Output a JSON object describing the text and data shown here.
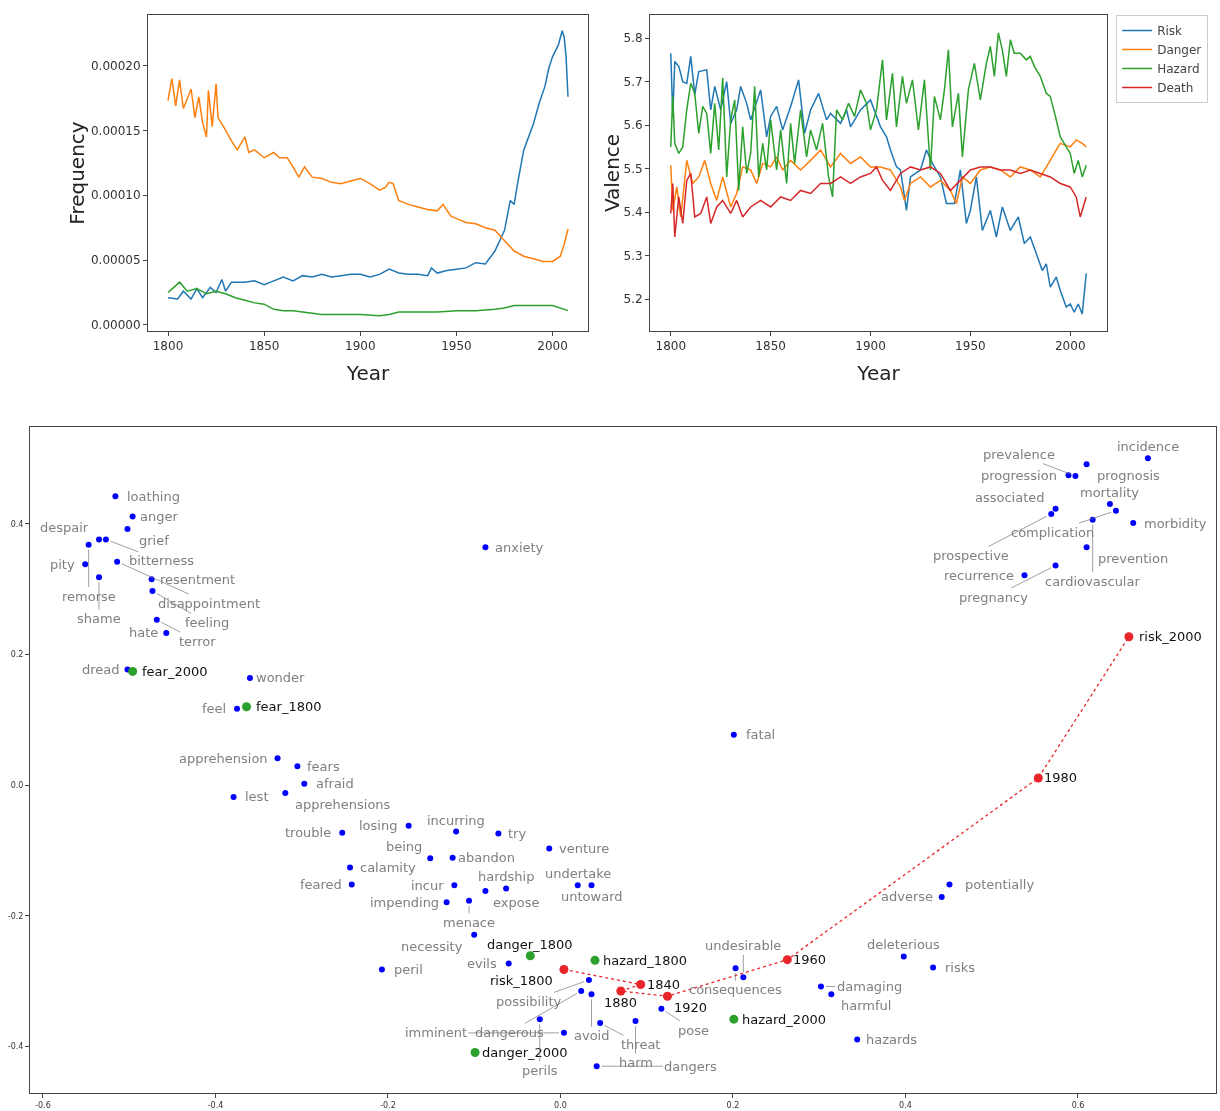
{
  "chart_data": [
    {
      "type": "line",
      "xlabel": "Year",
      "ylabel": "Frequency",
      "xlim": [
        1789.6,
        2018.4
      ],
      "ylim": [
        -4.7e-06,
        0.0002391
      ],
      "xticks": [
        1800,
        1850,
        1900,
        1950,
        2000
      ],
      "yticks": [
        {
          "value": 0,
          "label": "0.00000"
        },
        {
          "value": 5e-05,
          "label": "0.00005"
        },
        {
          "value": 0.0001,
          "label": "0.00010"
        },
        {
          "value": 0.00015,
          "label": "0.00015"
        },
        {
          "value": 0.0002,
          "label": "0.00020"
        }
      ],
      "series": [
        {
          "color": "#1f77b4",
          "x": [
            1800,
            1805,
            1808,
            1812,
            1815,
            1818,
            1822,
            1825,
            1828,
            1830,
            1833,
            1840,
            1845,
            1850,
            1855,
            1860,
            1865,
            1870,
            1875,
            1880,
            1885,
            1890,
            1895,
            1900,
            1905,
            1910,
            1915,
            1920,
            1925,
            1930,
            1935,
            1937,
            1940,
            1945,
            1950,
            1955,
            1960,
            1965,
            1970,
            1975,
            1978,
            1980,
            1982,
            1985,
            1988,
            1990,
            1993,
            1996,
            1998,
            2000,
            2003,
            2005,
            2006,
            2007,
            2008
          ],
          "values": [
            2.1e-05,
            2e-05,
            2.6e-05,
            2e-05,
            2.8e-05,
            2.1e-05,
            2.9e-05,
            2.5e-05,
            3.5e-05,
            2.6e-05,
            3.3e-05,
            3.3e-05,
            3.4e-05,
            3.1e-05,
            3.4e-05,
            3.7e-05,
            3.4e-05,
            3.8e-05,
            3.7e-05,
            3.9e-05,
            3.7e-05,
            3.8e-05,
            3.9e-05,
            3.9e-05,
            3.7e-05,
            3.9e-05,
            4.3e-05,
            4e-05,
            3.9e-05,
            3.9e-05,
            3.8e-05,
            4.4e-05,
            4e-05,
            4.2e-05,
            4.3e-05,
            4.4e-05,
            4.8e-05,
            4.7e-05,
            5.7e-05,
            7.3e-05,
            9.6e-05,
            9.3e-05,
            0.000111,
            0.000135,
            0.000147,
            0.000155,
            0.000171,
            0.000184,
            0.000198,
            0.000207,
            0.000216,
            0.000227,
            0.000222,
            0.000207,
            0.000176
          ]
        },
        {
          "color": "#ff7f0e",
          "x": [
            1800,
            1802,
            1804,
            1806,
            1808,
            1812,
            1814,
            1816,
            1818,
            1820,
            1821,
            1823,
            1825,
            1826,
            1830,
            1833,
            1836,
            1840,
            1842,
            1845,
            1850,
            1855,
            1858,
            1862,
            1865,
            1868,
            1871,
            1875,
            1880,
            1885,
            1890,
            1895,
            1900,
            1905,
            1910,
            1913,
            1915,
            1917,
            1920,
            1925,
            1930,
            1935,
            1940,
            1943,
            1947,
            1950,
            1955,
            1960,
            1965,
            1970,
            1975,
            1980,
            1985,
            1990,
            1995,
            2000,
            2004,
            2006,
            2008
          ],
          "values": [
            0.000173,
            0.00019,
            0.000169,
            0.000189,
            0.000167,
            0.000182,
            0.00016,
            0.000176,
            0.000156,
            0.000145,
            0.000181,
            0.000153,
            0.000186,
            0.00016,
            0.00015,
            0.000142,
            0.000135,
            0.000145,
            0.000133,
            0.000135,
            0.000129,
            0.000133,
            0.000129,
            0.000129,
            0.000122,
            0.000114,
            0.000122,
            0.000114,
            0.000113,
            0.00011,
            0.000109,
            0.000111,
            0.000113,
            0.000109,
            0.000104,
            0.000106,
            0.00011,
            0.000109,
            9.6e-05,
            9.3e-05,
            9.1e-05,
            8.9e-05,
            8.8e-05,
            9.3e-05,
            8.4e-05,
            8.2e-05,
            7.9e-05,
            7.8e-05,
            7.5e-05,
            7.3e-05,
            6.5e-05,
            5.7e-05,
            5.3e-05,
            5.1e-05,
            4.9e-05,
            4.9e-05,
            5.3e-05,
            6.2e-05,
            7.4e-05
          ]
        },
        {
          "color": "#2ca02c",
          "x": [
            1800,
            1803,
            1806,
            1810,
            1815,
            1820,
            1825,
            1830,
            1835,
            1840,
            1845,
            1850,
            1855,
            1860,
            1865,
            1870,
            1875,
            1880,
            1890,
            1900,
            1910,
            1915,
            1920,
            1930,
            1940,
            1950,
            1960,
            1970,
            1975,
            1980,
            1990,
            2000,
            2008
          ],
          "values": [
            2.5e-05,
            2.9e-05,
            3.3e-05,
            2.6e-05,
            2.8e-05,
            2.4e-05,
            2.6e-05,
            2.4e-05,
            2.1e-05,
            1.9e-05,
            1.7e-05,
            1.6e-05,
            1.2e-05,
            1.1e-05,
            1.1e-05,
            1e-05,
            9e-06,
            8e-06,
            8e-06,
            8e-06,
            7e-06,
            8e-06,
            1e-05,
            1e-05,
            1e-05,
            1.1e-05,
            1.1e-05,
            1.2e-05,
            1.3e-05,
            1.5e-05,
            1.5e-05,
            1.5e-05,
            1.1e-05
          ]
        }
      ]
    },
    {
      "type": "line",
      "xlabel": "Year",
      "ylabel": "Valence",
      "xlim": [
        1789.6,
        2018.4
      ],
      "ylim": [
        5.127,
        5.853
      ],
      "xticks": [
        1800,
        1850,
        1900,
        1950,
        2000
      ],
      "yticks": [
        5.2,
        5.3,
        5.4,
        5.5,
        5.6,
        5.7,
        5.8
      ],
      "legend": "top right",
      "series": [
        {
          "name": "Risk",
          "color": "#1f77b4",
          "x": [
            1800,
            1801,
            1802,
            1804,
            1806,
            1808,
            1810,
            1812,
            1814,
            1818,
            1820,
            1822,
            1825,
            1828,
            1830,
            1833,
            1835,
            1838,
            1840,
            1845,
            1848,
            1850,
            1853,
            1856,
            1860,
            1864,
            1867,
            1870,
            1874,
            1878,
            1880,
            1885,
            1888,
            1890,
            1895,
            1900,
            1905,
            1908,
            1910,
            1913,
            1915,
            1918,
            1920,
            1925,
            1928,
            1931,
            1935,
            1938,
            1942,
            1945,
            1948,
            1950,
            1953,
            1956,
            1960,
            1963,
            1966,
            1970,
            1974,
            1977,
            1980,
            1983,
            1986,
            1988,
            1990,
            1993,
            1995,
            1998,
            2000,
            2002,
            2004,
            2006,
            2008
          ],
          "values": [
            5.765,
            5.62,
            5.746,
            5.735,
            5.7,
            5.696,
            5.758,
            5.67,
            5.723,
            5.727,
            5.635,
            5.689,
            5.635,
            5.7,
            5.604,
            5.635,
            5.689,
            5.65,
            5.612,
            5.681,
            5.573,
            5.62,
            5.643,
            5.589,
            5.643,
            5.704,
            5.581,
            5.635,
            5.673,
            5.612,
            5.627,
            5.604,
            5.635,
            5.596,
            5.635,
            5.658,
            5.596,
            5.573,
            5.543,
            5.504,
            5.497,
            5.404,
            5.481,
            5.497,
            5.543,
            5.512,
            5.481,
            5.42,
            5.42,
            5.497,
            5.374,
            5.404,
            5.481,
            5.358,
            5.404,
            5.343,
            5.412,
            5.358,
            5.389,
            5.328,
            5.343,
            5.305,
            5.266,
            5.281,
            5.228,
            5.251,
            5.22,
            5.182,
            5.189,
            5.17,
            5.189,
            5.166,
            5.259
          ]
        },
        {
          "name": "Danger",
          "color": "#ff7f0e",
          "x": [
            1800,
            1801,
            1803,
            1805,
            1808,
            1811,
            1814,
            1817,
            1820,
            1823,
            1826,
            1830,
            1833,
            1836,
            1840,
            1843,
            1846,
            1850,
            1853,
            1856,
            1860,
            1865,
            1870,
            1875,
            1880,
            1885,
            1890,
            1895,
            1900,
            1905,
            1910,
            1915,
            1917,
            1920,
            1925,
            1930,
            1935,
            1940,
            1943,
            1946,
            1950,
            1955,
            1960,
            1965,
            1970,
            1975,
            1980,
            1985,
            1990,
            1993,
            1995,
            2000,
            2003,
            2006,
            2008
          ],
          "values": [
            5.508,
            5.404,
            5.458,
            5.389,
            5.519,
            5.466,
            5.481,
            5.519,
            5.466,
            5.427,
            5.481,
            5.412,
            5.443,
            5.504,
            5.497,
            5.466,
            5.512,
            5.504,
            5.527,
            5.497,
            5.519,
            5.497,
            5.519,
            5.543,
            5.504,
            5.535,
            5.512,
            5.527,
            5.504,
            5.504,
            5.497,
            5.458,
            5.427,
            5.466,
            5.481,
            5.458,
            5.473,
            5.45,
            5.42,
            5.481,
            5.466,
            5.497,
            5.504,
            5.497,
            5.481,
            5.504,
            5.497,
            5.481,
            5.519,
            5.543,
            5.558,
            5.55,
            5.566,
            5.558,
            5.55
          ]
        },
        {
          "name": "Hazard",
          "color": "#2ca02c",
          "x": [
            1800,
            1801,
            1802,
            1804,
            1806,
            1808,
            1810,
            1812,
            1814,
            1816,
            1818,
            1820,
            1822,
            1824,
            1826,
            1828,
            1830,
            1832,
            1834,
            1836,
            1838,
            1840,
            1842,
            1844,
            1846,
            1848,
            1850,
            1853,
            1855,
            1858,
            1860,
            1862,
            1865,
            1868,
            1870,
            1873,
            1876,
            1879,
            1881,
            1883,
            1886,
            1889,
            1892,
            1895,
            1898,
            1900,
            1903,
            1906,
            1908,
            1911,
            1913,
            1916,
            1918,
            1921,
            1924,
            1927,
            1930,
            1932,
            1935,
            1937,
            1939,
            1941,
            1944,
            1946,
            1949,
            1952,
            1955,
            1958,
            1960,
            1962,
            1964,
            1966,
            1968,
            1970,
            1972,
            1975,
            1978,
            1980,
            1982,
            1985,
            1988,
            1990,
            1993,
            1995,
            1998,
            2000,
            2002,
            2004,
            2006,
            2008
          ],
          "values": [
            5.55,
            5.666,
            5.558,
            5.535,
            5.55,
            5.635,
            5.696,
            5.673,
            5.581,
            5.643,
            5.627,
            5.535,
            5.65,
            5.543,
            5.708,
            5.481,
            5.612,
            5.658,
            5.45,
            5.596,
            5.489,
            5.535,
            5.689,
            5.481,
            5.558,
            5.497,
            5.612,
            5.497,
            5.589,
            5.466,
            5.604,
            5.512,
            5.635,
            5.527,
            5.589,
            5.543,
            5.604,
            5.481,
            5.435,
            5.635,
            5.612,
            5.65,
            5.62,
            5.681,
            5.65,
            5.589,
            5.635,
            5.75,
            5.612,
            5.719,
            5.596,
            5.712,
            5.65,
            5.704,
            5.589,
            5.704,
            5.497,
            5.666,
            5.612,
            5.681,
            5.773,
            5.596,
            5.673,
            5.527,
            5.681,
            5.742,
            5.658,
            5.742,
            5.781,
            5.712,
            5.812,
            5.773,
            5.712,
            5.796,
            5.765,
            5.765,
            5.75,
            5.758,
            5.735,
            5.712,
            5.673,
            5.666,
            5.612,
            5.573,
            5.55,
            5.535,
            5.489,
            5.519,
            5.481,
            5.508
          ]
        },
        {
          "name": "Death",
          "color": "#d62728",
          "x": [
            1800,
            1801,
            1802,
            1804,
            1806,
            1808,
            1810,
            1812,
            1815,
            1818,
            1820,
            1823,
            1826,
            1830,
            1833,
            1836,
            1840,
            1845,
            1850,
            1855,
            1860,
            1865,
            1870,
            1875,
            1880,
            1885,
            1890,
            1895,
            1900,
            1903,
            1906,
            1910,
            1915,
            1920,
            1925,
            1930,
            1935,
            1940,
            1945,
            1950,
            1955,
            1960,
            1965,
            1970,
            1975,
            1980,
            1985,
            1990,
            1995,
            2000,
            2003,
            2005,
            2008
          ],
          "values": [
            5.397,
            5.466,
            5.343,
            5.435,
            5.374,
            5.473,
            5.489,
            5.389,
            5.397,
            5.435,
            5.374,
            5.412,
            5.427,
            5.397,
            5.427,
            5.389,
            5.412,
            5.427,
            5.412,
            5.435,
            5.427,
            5.45,
            5.443,
            5.466,
            5.466,
            5.481,
            5.466,
            5.481,
            5.489,
            5.504,
            5.473,
            5.45,
            5.489,
            5.504,
            5.497,
            5.504,
            5.489,
            5.45,
            5.473,
            5.497,
            5.504,
            5.504,
            5.497,
            5.497,
            5.489,
            5.497,
            5.489,
            5.481,
            5.466,
            5.458,
            5.435,
            5.389,
            5.435
          ]
        }
      ]
    },
    {
      "type": "scatter",
      "marker": "circle",
      "xlim": [
        -0.615,
        0.76
      ],
      "ylim": [
        -0.471,
        0.548
      ],
      "xticks": [
        -0.6,
        -0.4,
        -0.2,
        {
          "value": 0,
          "label": "0.0"
        },
        0.2,
        0.4,
        0.6
      ],
      "yticks": [
        -0.4,
        -0.2,
        {
          "value": 0,
          "label": "0.0"
        },
        0.2,
        0.4
      ],
      "series": [
        {
          "color": "#0000ff",
          "x": [
            0.681,
            0.61,
            0.589,
            0.597,
            0.637,
            0.644,
            0.664,
            0.574,
            0.569,
            0.617,
            0.61,
            0.574,
            0.538,
            -0.516,
            -0.496,
            -0.502,
            -0.535,
            -0.527,
            -0.547,
            -0.551,
            -0.514,
            -0.474,
            -0.535,
            -0.473,
            -0.468,
            -0.457,
            -0.502,
            -0.36,
            -0.375,
            -0.087,
            0.201,
            -0.328,
            -0.305,
            -0.297,
            -0.379,
            -0.319,
            -0.253,
            -0.176,
            -0.072,
            -0.121,
            -0.125,
            -0.013,
            -0.244,
            -0.151,
            0.02,
            0.036,
            -0.123,
            -0.063,
            -0.242,
            -0.087,
            -0.132,
            -0.106,
            -0.1,
            0.451,
            0.442,
            0.398,
            0.432,
            -0.207,
            -0.06,
            0.033,
            0.203,
            0.212,
            0.302,
            0.314,
            0.024,
            0.036,
            -0.024,
            0.046,
            0.117,
            0.087,
            0.004,
            0.344,
            0.042
          ],
          "values": [
            0.5,
            0.491,
            0.474,
            0.473,
            0.43,
            0.42,
            0.401,
            0.423,
            0.415,
            0.406,
            0.364,
            0.336,
            0.321,
            0.442,
            0.411,
            0.392,
            0.376,
            0.376,
            0.368,
            0.338,
            0.342,
            0.315,
            0.318,
            0.297,
            0.253,
            0.233,
            0.177,
            0.164,
            0.117,
            0.364,
            0.077,
            0.041,
            0.029,
            0.002,
            -0.018,
            -0.012,
            -0.073,
            -0.062,
            -0.074,
            -0.071,
            -0.111,
            -0.097,
            -0.126,
            -0.112,
            -0.153,
            -0.153,
            -0.153,
            -0.158,
            -0.152,
            -0.162,
            -0.179,
            -0.177,
            -0.229,
            -0.152,
            -0.171,
            -0.262,
            -0.279,
            -0.282,
            -0.273,
            -0.298,
            -0.28,
            -0.294,
            -0.308,
            -0.32,
            -0.315,
            -0.32,
            -0.358,
            -0.364,
            -0.342,
            -0.361,
            -0.379,
            -0.389,
            -0.43
          ]
        },
        {
          "color": "#2ca02c",
          "x": [
            -0.496,
            -0.364,
            -0.035,
            0.04,
            0.201,
            -0.099
          ],
          "values": [
            0.174,
            0.12,
            -0.261,
            -0.268,
            -0.358,
            -0.409
          ]
        },
        {
          "type": "line",
          "line_style": "dotted",
          "color": "#e8252a",
          "x": [
            0.004,
            0.093,
            0.07,
            0.124,
            0.263,
            0.554,
            0.659
          ],
          "values": [
            -0.282,
            -0.305,
            -0.315,
            -0.323,
            -0.267,
            0.011,
            0.227
          ]
        }
      ],
      "annotations": [
        {
          "text": "risk_1800",
          "x": 0.004,
          "y": -0.282
        },
        {
          "text": "1840",
          "x": 0.093,
          "y": -0.305
        },
        {
          "text": "1880",
          "x": 0.07,
          "y": -0.315
        },
        {
          "text": "1920",
          "x": 0.124,
          "y": -0.323
        },
        {
          "text": "1960",
          "x": 0.263,
          "y": -0.267
        },
        {
          "text": "1980",
          "x": 0.554,
          "y": 0.011
        },
        {
          "text": "risk_2000",
          "x": 0.659,
          "y": 0.227
        },
        {
          "text": "fear_2000",
          "x": -0.496,
          "y": 0.174
        },
        {
          "text": "fear_1800",
          "x": -0.364,
          "y": 0.12
        },
        {
          "text": "danger_1800",
          "x": -0.035,
          "y": -0.261
        },
        {
          "text": "hazard_1800",
          "x": 0.04,
          "y": -0.268
        },
        {
          "text": "hazard_2000",
          "x": 0.201,
          "y": -0.358
        },
        {
          "text": "danger_2000",
          "x": -0.099,
          "y": -0.409
        },
        {
          "text": "incidence",
          "x": 0.681,
          "y": 0.5
        },
        {
          "text": "prognosis",
          "x": 0.61,
          "y": 0.491
        },
        {
          "text": "progression",
          "x": 0.589,
          "y": 0.474
        },
        {
          "text": "prevalence",
          "x": 0.597,
          "y": 0.473
        },
        {
          "text": "mortality",
          "x": 0.637,
          "y": 0.43
        },
        {
          "text": "complication",
          "x": 0.644,
          "y": 0.42
        },
        {
          "text": "morbidity",
          "x": 0.664,
          "y": 0.401
        },
        {
          "text": "associated",
          "x": 0.574,
          "y": 0.423
        },
        {
          "text": "prospective",
          "x": 0.569,
          "y": 0.415
        },
        {
          "text": "cardiovascular",
          "x": 0.617,
          "y": 0.406
        },
        {
          "text": "prevention",
          "x": 0.61,
          "y": 0.364
        },
        {
          "text": "pregnancy",
          "x": 0.574,
          "y": 0.336
        },
        {
          "text": "recurrence",
          "x": 0.538,
          "y": 0.321
        },
        {
          "text": "loathing",
          "x": -0.516,
          "y": 0.442
        },
        {
          "text": "anger",
          "x": -0.496,
          "y": 0.411
        },
        {
          "text": "grief",
          "x": -0.502,
          "y": 0.392
        },
        {
          "text": "despair",
          "x": -0.535,
          "y": 0.376
        },
        {
          "text": "bitterness",
          "x": -0.527,
          "y": 0.376
        },
        {
          "text": "remorse",
          "x": -0.547,
          "y": 0.368
        },
        {
          "text": "pity",
          "x": -0.551,
          "y": 0.338
        },
        {
          "text": "disappointment",
          "x": -0.514,
          "y": 0.342
        },
        {
          "text": "resentment",
          "x": -0.474,
          "y": 0.315
        },
        {
          "text": "shame",
          "x": -0.535,
          "y": 0.318
        },
        {
          "text": "feeling",
          "x": -0.473,
          "y": 0.297
        },
        {
          "text": "terror",
          "x": -0.468,
          "y": 0.253
        },
        {
          "text": "hate",
          "x": -0.457,
          "y": 0.233
        },
        {
          "text": "dread",
          "x": -0.502,
          "y": 0.177
        },
        {
          "text": "wonder",
          "x": -0.36,
          "y": 0.164
        },
        {
          "text": "feel",
          "x": -0.375,
          "y": 0.117
        },
        {
          "text": "anxiety",
          "x": -0.087,
          "y": 0.364
        },
        {
          "text": "fatal",
          "x": 0.201,
          "y": 0.077
        },
        {
          "text": "apprehension",
          "x": -0.328,
          "y": 0.041
        },
        {
          "text": "fears",
          "x": -0.305,
          "y": 0.029
        },
        {
          "text": "afraid",
          "x": -0.297,
          "y": 0.002
        },
        {
          "text": "lest",
          "x": -0.379,
          "y": -0.018
        },
        {
          "text": "apprehensions",
          "x": -0.319,
          "y": -0.012
        },
        {
          "text": "trouble",
          "x": -0.253,
          "y": -0.073
        },
        {
          "text": "losing",
          "x": -0.176,
          "y": -0.062
        },
        {
          "text": "try",
          "x": -0.072,
          "y": -0.074
        },
        {
          "text": "incurring",
          "x": -0.121,
          "y": -0.071
        },
        {
          "text": "abandon",
          "x": -0.125,
          "y": -0.111
        },
        {
          "text": "venture",
          "x": -0.013,
          "y": -0.097
        },
        {
          "text": "calamity",
          "x": -0.244,
          "y": -0.126
        },
        {
          "text": "being",
          "x": -0.151,
          "y": -0.112
        },
        {
          "text": "undertake",
          "x": 0.02,
          "y": -0.153
        },
        {
          "text": "untoward",
          "x": 0.036,
          "y": -0.153
        },
        {
          "text": "incur",
          "x": -0.123,
          "y": -0.153
        },
        {
          "text": "hardship",
          "x": -0.063,
          "y": -0.158
        },
        {
          "text": "feared",
          "x": -0.242,
          "y": -0.152
        },
        {
          "text": "expose",
          "x": -0.087,
          "y": -0.162
        },
        {
          "text": "impending",
          "x": -0.132,
          "y": -0.179
        },
        {
          "text": "menace",
          "x": -0.106,
          "y": -0.177
        },
        {
          "text": "necessity",
          "x": -0.1,
          "y": -0.229
        },
        {
          "text": "potentially",
          "x": 0.451,
          "y": -0.152
        },
        {
          "text": "adverse",
          "x": 0.442,
          "y": -0.171
        },
        {
          "text": "deleterious",
          "x": 0.398,
          "y": -0.262
        },
        {
          "text": "risks",
          "x": 0.432,
          "y": -0.279
        },
        {
          "text": "peril",
          "x": -0.207,
          "y": -0.282
        },
        {
          "text": "evils",
          "x": -0.06,
          "y": -0.273
        },
        {
          "text": "possibility",
          "x": 0.033,
          "y": -0.298
        },
        {
          "text": "consequences",
          "x": 0.203,
          "y": -0.28
        },
        {
          "text": "undesirable",
          "x": 0.212,
          "y": -0.294
        },
        {
          "text": "damaging",
          "x": 0.302,
          "y": -0.308
        },
        {
          "text": "harmful",
          "x": 0.314,
          "y": -0.32
        },
        {
          "text": "dangerous",
          "x": 0.024,
          "y": -0.315
        },
        {
          "text": "avoid",
          "x": 0.036,
          "y": -0.32
        },
        {
          "text": "perils",
          "x": -0.024,
          "y": -0.358
        },
        {
          "text": "threat",
          "x": 0.046,
          "y": -0.364
        },
        {
          "text": "pose",
          "x": 0.117,
          "y": -0.342
        },
        {
          "text": "harm",
          "x": 0.087,
          "y": -0.361
        },
        {
          "text": "imminent",
          "x": 0.004,
          "y": -0.379
        },
        {
          "text": "hazards",
          "x": 0.344,
          "y": -0.389
        },
        {
          "text": "dangers",
          "x": 0.042,
          "y": -0.43
        }
      ]
    }
  ]
}
